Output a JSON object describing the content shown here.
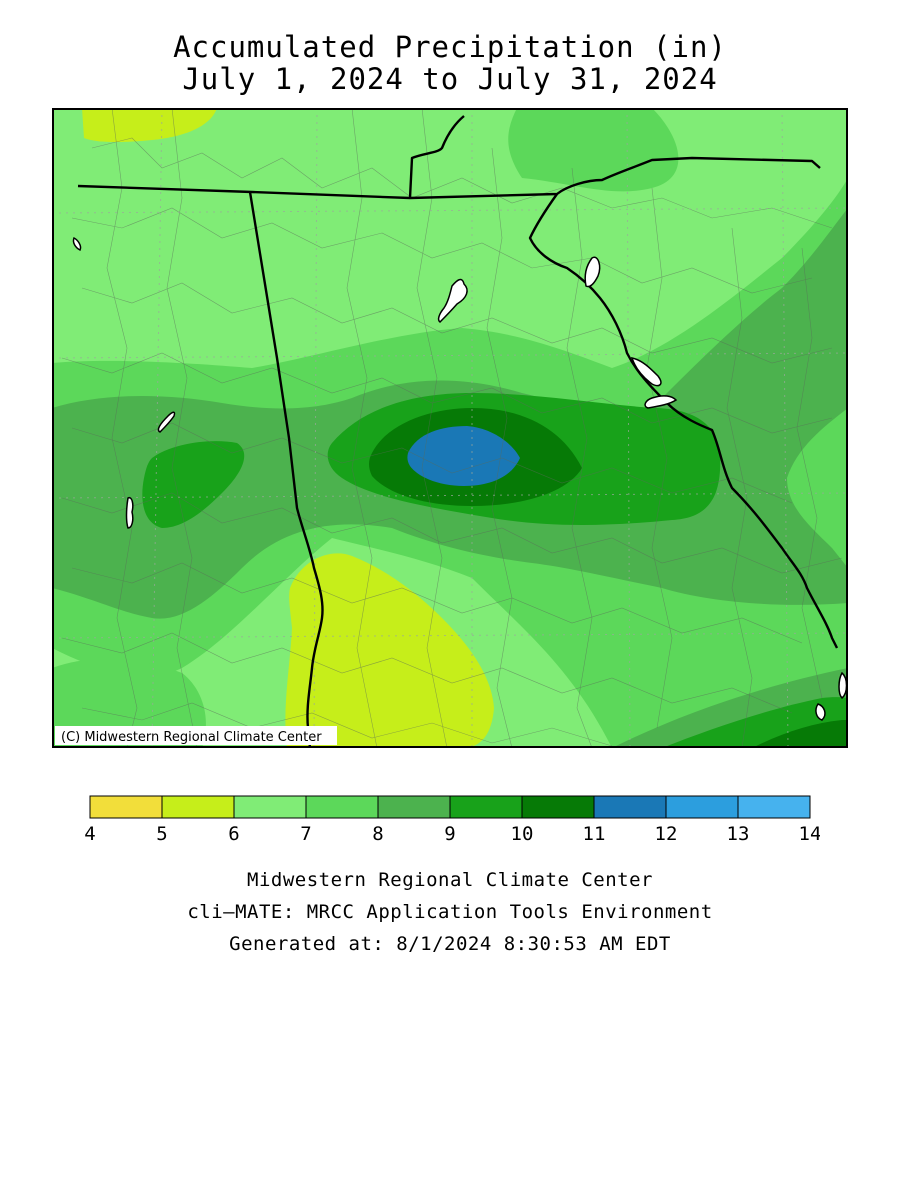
{
  "title": {
    "line1": "Accumulated Precipitation (in)",
    "line2": "July 1, 2024 to July 31, 2024"
  },
  "map": {
    "copyright": "(C) Midwestern Regional Climate Center"
  },
  "legend": {
    "ticks": [
      "4",
      "5",
      "6",
      "7",
      "8",
      "9",
      "10",
      "11",
      "12",
      "13",
      "14"
    ],
    "bins": [
      {
        "min": 4,
        "max": 5,
        "color": "#f2de3a"
      },
      {
        "min": 5,
        "max": 6,
        "color": "#c6ee1a"
      },
      {
        "min": 6,
        "max": 7,
        "color": "#80ec76"
      },
      {
        "min": 7,
        "max": 8,
        "color": "#5cd85a"
      },
      {
        "min": 8,
        "max": 9,
        "color": "#4cb24e"
      },
      {
        "min": 9,
        "max": 10,
        "color": "#18a21a"
      },
      {
        "min": 10,
        "max": 11,
        "color": "#067a06"
      },
      {
        "min": 11,
        "max": 12,
        "color": "#1a78b6"
      },
      {
        "min": 12,
        "max": 13,
        "color": "#2c9ede"
      },
      {
        "min": 13,
        "max": 14,
        "color": "#46b2ee"
      }
    ]
  },
  "footer": {
    "line1": "Midwestern Regional Climate Center",
    "line2": "cli—MATE: MRCC Application Tools Environment",
    "line3": "Generated at: 8/1/2024 8:30:53 AM EDT"
  }
}
